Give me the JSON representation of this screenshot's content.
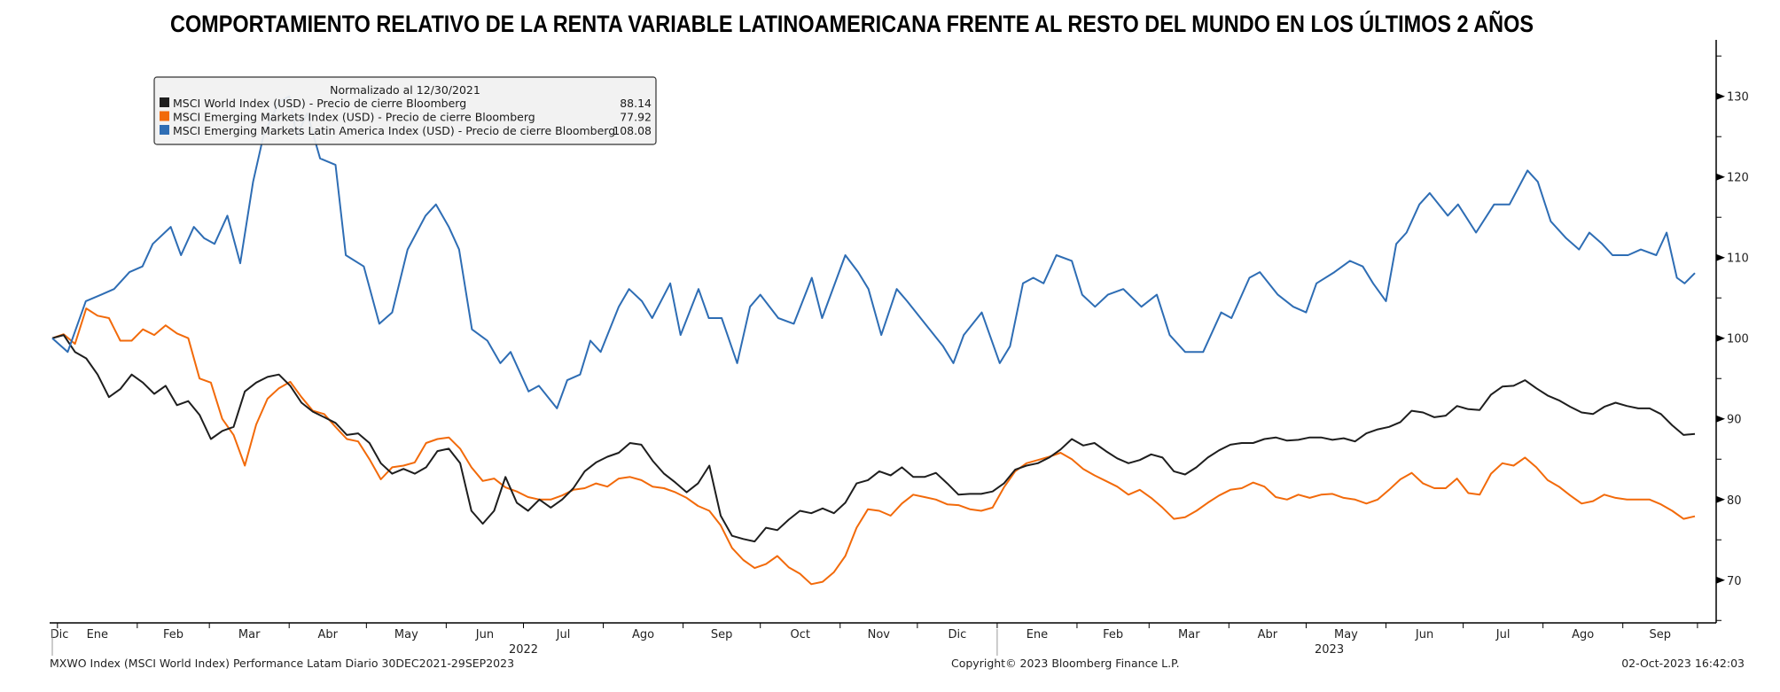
{
  "chart_data": {
    "type": "line",
    "title": "COMPORTAMIENTO RELATIVO DE LA RENTA VARIABLE LATINOAMERICANA FRENTE AL RESTO DEL MUNDO EN LOS ÚLTIMOS 2 AÑOS",
    "start_date": "2021-12-30",
    "end_date": "2023-09-29",
    "ylim": [
      64.7,
      137
    ],
    "yticks": [
      70,
      80,
      90,
      100,
      110,
      120,
      130
    ],
    "y_minor_step": 5,
    "grid": false,
    "legend": {
      "placement": "top-left",
      "header": "Normalizado al 12/30/2021"
    },
    "x_month_labels": [
      {
        "label": "Dic",
        "y": 2021,
        "m": 12
      },
      {
        "label": "Ene",
        "y": 2022,
        "m": 1
      },
      {
        "label": "Feb",
        "y": 2022,
        "m": 2
      },
      {
        "label": "Mar",
        "y": 2022,
        "m": 3
      },
      {
        "label": "Abr",
        "y": 2022,
        "m": 4
      },
      {
        "label": "May",
        "y": 2022,
        "m": 5
      },
      {
        "label": "Jun",
        "y": 2022,
        "m": 6
      },
      {
        "label": "Jul",
        "y": 2022,
        "m": 7
      },
      {
        "label": "Ago",
        "y": 2022,
        "m": 8
      },
      {
        "label": "Sep",
        "y": 2022,
        "m": 9
      },
      {
        "label": "Oct",
        "y": 2022,
        "m": 10
      },
      {
        "label": "Nov",
        "y": 2022,
        "m": 11
      },
      {
        "label": "Dic",
        "y": 2022,
        "m": 12
      },
      {
        "label": "Ene",
        "y": 2023,
        "m": 1
      },
      {
        "label": "Feb",
        "y": 2023,
        "m": 2
      },
      {
        "label": "Mar",
        "y": 2023,
        "m": 3
      },
      {
        "label": "Abr",
        "y": 2023,
        "m": 4
      },
      {
        "label": "May",
        "y": 2023,
        "m": 5
      },
      {
        "label": "Jun",
        "y": 2023,
        "m": 6
      },
      {
        "label": "Jul",
        "y": 2023,
        "m": 7
      },
      {
        "label": "Ago",
        "y": 2023,
        "m": 8
      },
      {
        "label": "Sep",
        "y": 2023,
        "m": 9
      }
    ],
    "x_year_labels": [
      "2022",
      "2023"
    ],
    "series": [
      {
        "name": "MSCI World Index (USD) - Precio de cierre Bloomberg",
        "last": "88.14",
        "color": "#1e1e1e",
        "values_uniform": [
          100,
          100.4,
          98.3,
          97.5,
          95.5,
          92.7,
          93.7,
          95.5,
          94.5,
          93.1,
          94.1,
          91.7,
          92.2,
          90.5,
          87.5,
          88.5,
          89.0,
          93.4,
          94.5,
          95.2,
          95.5,
          94.1,
          92.0,
          90.9,
          90.2,
          89.5,
          88.0,
          88.2,
          87.0,
          84.5,
          83.2,
          83.8,
          83.2,
          84.0,
          86.0,
          86.3,
          84.5,
          78.6,
          77.0,
          78.6,
          82.8,
          79.6,
          78.6,
          80.0,
          79.0,
          80.0,
          81.4,
          83.5,
          84.6,
          85.3,
          85.8,
          87.0,
          86.8,
          84.8,
          83.2,
          82.1,
          80.9,
          82.0,
          84.2,
          78.0,
          75.5,
          75.1,
          74.8,
          76.5,
          76.2,
          77.5,
          78.6,
          78.3,
          78.9,
          78.3,
          79.6,
          82.0,
          82.4,
          83.5,
          83.0,
          84.0,
          82.8,
          82.8,
          83.3,
          82.0,
          80.6,
          80.7,
          80.7,
          81.0,
          82.0,
          83.7,
          84.2,
          84.5,
          85.2,
          86.2,
          87.5,
          86.7,
          87.0,
          86.0,
          85.1,
          84.5,
          84.9,
          85.6,
          85.2,
          83.5,
          83.1,
          84.0,
          85.2,
          86.1,
          86.8,
          87.0,
          87.0,
          87.5,
          87.7,
          87.3,
          87.4,
          87.7,
          87.7,
          87.4,
          87.6,
          87.2,
          88.2,
          88.7,
          89.0,
          89.6,
          91.0,
          90.8,
          90.2,
          90.4,
          91.6,
          91.2,
          91.1,
          93.0,
          94.0,
          94.1,
          94.8,
          93.8,
          92.9,
          92.3,
          91.5,
          90.8,
          90.6,
          91.5,
          92.0,
          91.6,
          91.3,
          91.3,
          90.6,
          89.2,
          88.0,
          88.14
        ]
      },
      {
        "name": "MSCI Emerging Markets Index (USD) - Precio de cierre Bloomberg",
        "last": "77.92",
        "color": "#f26a0a",
        "values_uniform": [
          100,
          100.5,
          99.3,
          103.7,
          102.8,
          102.5,
          99.7,
          99.7,
          101.1,
          100.4,
          101.6,
          100.6,
          100.0,
          95.0,
          94.5,
          90.0,
          88.0,
          84.2,
          89.3,
          92.5,
          93.8,
          94.6,
          92.7,
          91.0,
          90.6,
          89.0,
          87.5,
          87.2,
          85.0,
          82.5,
          84.0,
          84.2,
          84.6,
          87.0,
          87.5,
          87.7,
          86.3,
          84.0,
          82.3,
          82.6,
          81.5,
          81.0,
          80.3,
          80.0,
          80.0,
          80.5,
          81.2,
          81.4,
          82.0,
          81.6,
          82.6,
          82.8,
          82.4,
          81.6,
          81.4,
          80.9,
          80.2,
          79.2,
          78.6,
          76.8,
          74.0,
          72.5,
          71.5,
          72.0,
          73.0,
          71.6,
          70.8,
          69.5,
          69.8,
          71.0,
          73.0,
          76.5,
          78.8,
          78.6,
          78.0,
          79.5,
          80.6,
          80.3,
          80.0,
          79.4,
          79.3,
          78.8,
          78.6,
          79.0,
          81.5,
          83.5,
          84.5,
          84.9,
          85.3,
          85.8,
          85.0,
          83.8,
          83.0,
          82.3,
          81.6,
          80.6,
          81.2,
          80.2,
          79.0,
          77.6,
          77.8,
          78.6,
          79.6,
          80.5,
          81.2,
          81.4,
          82.1,
          81.6,
          80.3,
          80.0,
          80.6,
          80.2,
          80.6,
          80.7,
          80.2,
          80.0,
          79.5,
          80.0,
          81.2,
          82.5,
          83.3,
          82.0,
          81.4,
          81.4,
          82.6,
          80.8,
          80.6,
          83.2,
          84.5,
          84.2,
          85.2,
          84.0,
          82.4,
          81.6,
          80.5,
          79.5,
          79.8,
          80.6,
          80.2,
          80.0,
          80.0,
          80.0,
          79.4,
          78.6,
          77.6,
          77.92
        ]
      },
      {
        "name": "MSCI Emerging Markets Latin America Index (USD) - Precio de cierre Bloomberg",
        "last": "108.08",
        "color": "#2e6db4",
        "points_day_value": [
          [
            0,
            100
          ],
          [
            6,
            98.3
          ],
          [
            13,
            104.6
          ],
          [
            19,
            105.4
          ],
          [
            24,
            106.1
          ],
          [
            30,
            108.2
          ],
          [
            35,
            108.9
          ],
          [
            39,
            111.7
          ],
          [
            46,
            113.8
          ],
          [
            50,
            110.3
          ],
          [
            55,
            113.8
          ],
          [
            59,
            112.4
          ],
          [
            63,
            111.7
          ],
          [
            68,
            115.2
          ],
          [
            73,
            109.3
          ],
          [
            78,
            119.4
          ],
          [
            82,
            125.1
          ],
          [
            88,
            129.3
          ],
          [
            92,
            130
          ],
          [
            95,
            125.1
          ],
          [
            99,
            127.9
          ],
          [
            104,
            122.3
          ],
          [
            110,
            121.5
          ],
          [
            114,
            110.3
          ],
          [
            121,
            108.9
          ],
          [
            127,
            101.8
          ],
          [
            132,
            103.2
          ],
          [
            138,
            111
          ],
          [
            145,
            115.2
          ],
          [
            149,
            116.6
          ],
          [
            154,
            113.8
          ],
          [
            158,
            111
          ],
          [
            163,
            101.1
          ],
          [
            169,
            99.7
          ],
          [
            174,
            96.9
          ],
          [
            178,
            98.3
          ],
          [
            185,
            93.4
          ],
          [
            189,
            94.1
          ],
          [
            196,
            91.3
          ],
          [
            200,
            94.8
          ],
          [
            205,
            95.5
          ],
          [
            209,
            99.7
          ],
          [
            213,
            98.3
          ],
          [
            220,
            103.9
          ],
          [
            224,
            106.1
          ],
          [
            229,
            104.6
          ],
          [
            233,
            102.5
          ],
          [
            240,
            106.8
          ],
          [
            244,
            100.4
          ],
          [
            251,
            106.1
          ],
          [
            255,
            102.5
          ],
          [
            260,
            102.5
          ],
          [
            266,
            96.9
          ],
          [
            271,
            103.9
          ],
          [
            275,
            105.4
          ],
          [
            282,
            102.5
          ],
          [
            288,
            101.8
          ],
          [
            295,
            107.5
          ],
          [
            299,
            102.5
          ],
          [
            308,
            110.3
          ],
          [
            313,
            108.2
          ],
          [
            317,
            106.1
          ],
          [
            322,
            100.4
          ],
          [
            328,
            106.1
          ],
          [
            332,
            104.6
          ],
          [
            339,
            101.8
          ],
          [
            346,
            99
          ],
          [
            350,
            96.9
          ],
          [
            354,
            100.4
          ],
          [
            361,
            103.2
          ],
          [
            368,
            96.9
          ],
          [
            372,
            99
          ],
          [
            377,
            106.8
          ],
          [
            381,
            107.5
          ],
          [
            385,
            106.8
          ],
          [
            390,
            110.3
          ],
          [
            396,
            109.6
          ],
          [
            400,
            105.4
          ],
          [
            405,
            103.9
          ],
          [
            410,
            105.4
          ],
          [
            416,
            106.1
          ],
          [
            423,
            103.9
          ],
          [
            429,
            105.4
          ],
          [
            434,
            100.4
          ],
          [
            440,
            98.3
          ],
          [
            447,
            98.3
          ],
          [
            454,
            103.2
          ],
          [
            458,
            102.5
          ],
          [
            465,
            107.5
          ],
          [
            469,
            108.2
          ],
          [
            476,
            105.4
          ],
          [
            482,
            103.9
          ],
          [
            487,
            103.2
          ],
          [
            491,
            106.8
          ],
          [
            498,
            108.2
          ],
          [
            504,
            109.6
          ],
          [
            509,
            108.9
          ],
          [
            513,
            106.8
          ],
          [
            518,
            104.6
          ],
          [
            522,
            111.7
          ],
          [
            526,
            113.1
          ],
          [
            531,
            116.6
          ],
          [
            535,
            118
          ],
          [
            542,
            115.2
          ],
          [
            546,
            116.6
          ],
          [
            553,
            113.1
          ],
          [
            560,
            116.6
          ],
          [
            566,
            116.6
          ],
          [
            573,
            120.8
          ],
          [
            577,
            119.4
          ],
          [
            582,
            114.5
          ],
          [
            588,
            112.4
          ],
          [
            593,
            111
          ],
          [
            597,
            113.1
          ],
          [
            602,
            111.7
          ],
          [
            606,
            110.3
          ],
          [
            612,
            110.3
          ],
          [
            617,
            111
          ],
          [
            623,
            110.3
          ],
          [
            627,
            113.1
          ],
          [
            631,
            107.5
          ],
          [
            634,
            106.8
          ],
          [
            638,
            108.08
          ]
        ]
      }
    ]
  },
  "footer": {
    "left": "MXWO Index (MSCI World Index) Performance Latam  Diario 30DEC2021-29SEP2023",
    "center": "Copyright© 2023 Bloomberg Finance L.P.",
    "right": "02-Oct-2023 16:42:03"
  }
}
